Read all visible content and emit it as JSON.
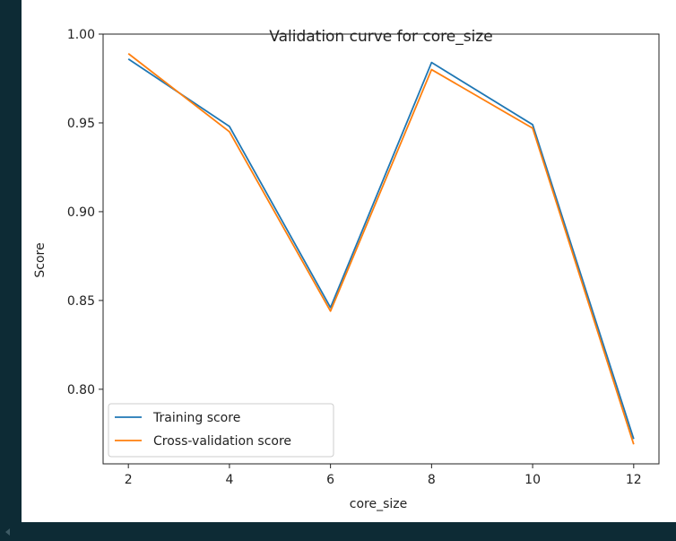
{
  "chart_data": {
    "type": "line",
    "title": "Validation curve for core_size",
    "xlabel": "core_size",
    "ylabel": "Score",
    "x": [
      2,
      4,
      6,
      8,
      10,
      12
    ],
    "xlim": [
      1.5,
      12.5
    ],
    "ylim": [
      0.758,
      1.0
    ],
    "xticks": [
      2,
      4,
      6,
      8,
      10,
      12
    ],
    "yticks": [
      0.8,
      0.85,
      0.9,
      0.95,
      1.0
    ],
    "ytick_labels": [
      "0.80",
      "0.85",
      "0.90",
      "0.95",
      "1.00"
    ],
    "grid": false,
    "legend_position": "lower-left",
    "series": [
      {
        "name": "Training score",
        "color": "#1f77b4",
        "values": [
          0.986,
          0.948,
          0.846,
          0.984,
          0.949,
          0.772
        ]
      },
      {
        "name": "Cross-validation score",
        "color": "#ff7f0e",
        "values": [
          0.989,
          0.945,
          0.844,
          0.98,
          0.947,
          0.769
        ]
      }
    ]
  }
}
